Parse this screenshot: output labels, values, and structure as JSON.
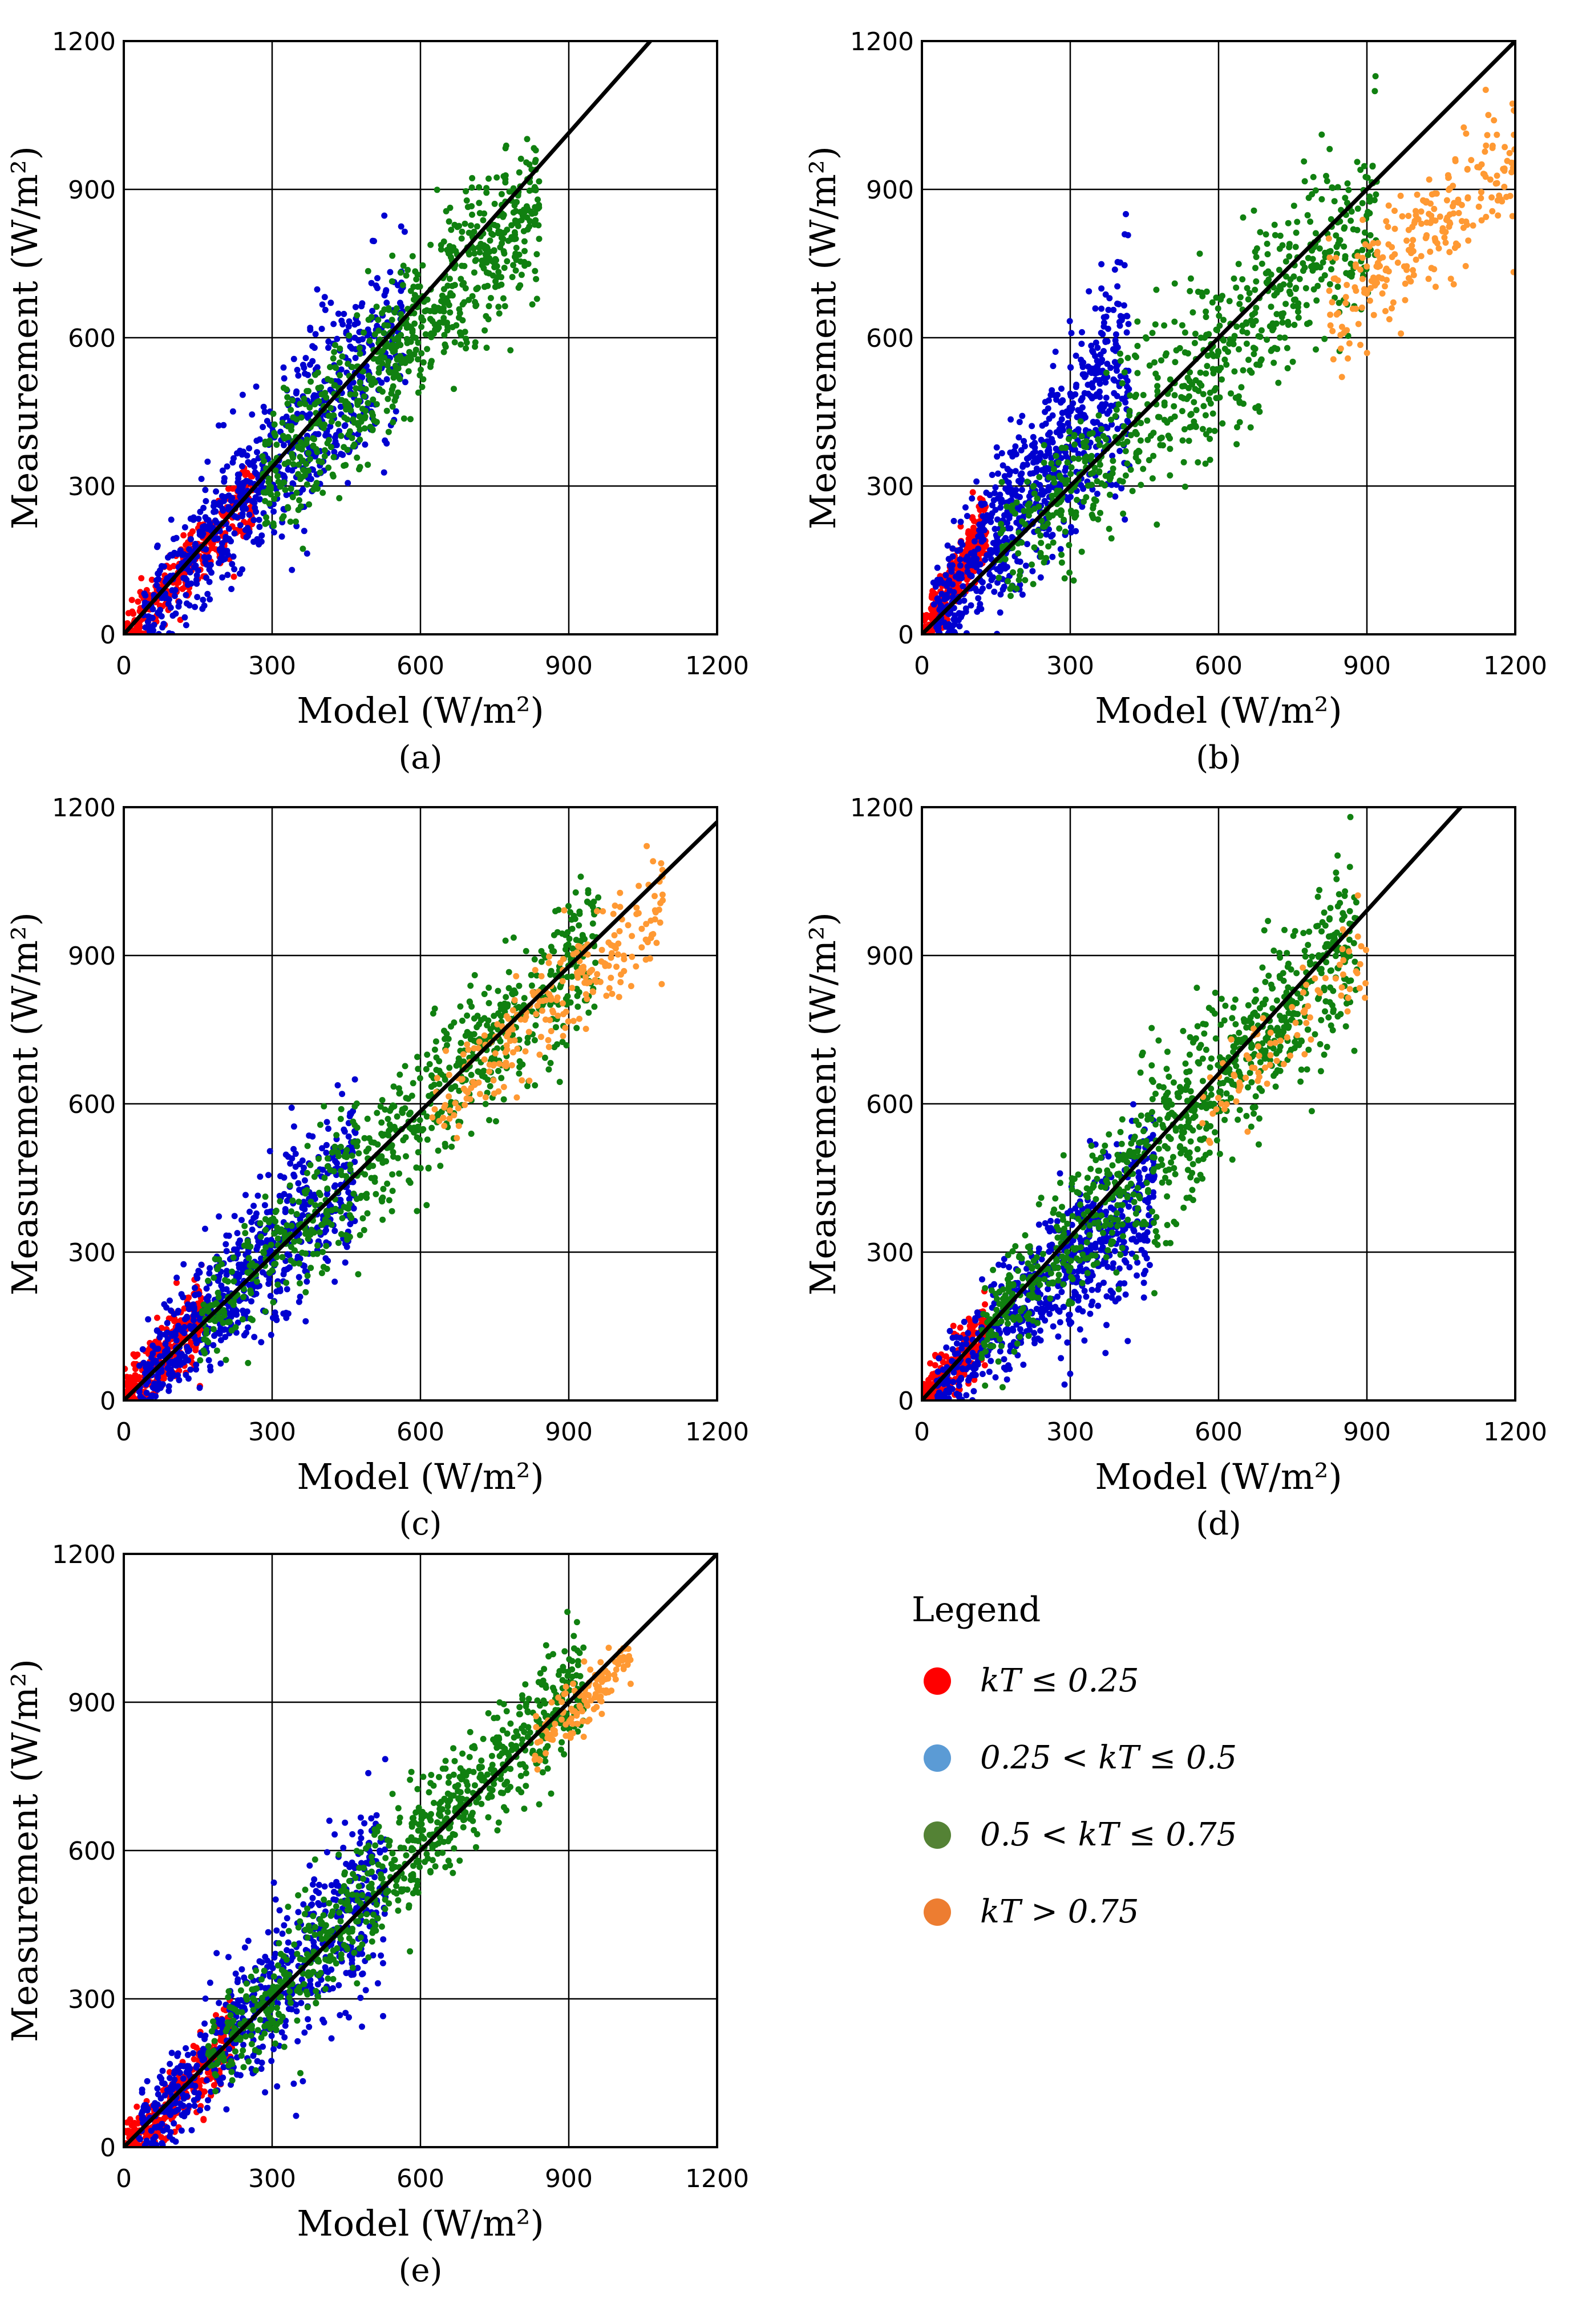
{
  "figure": {
    "panel_labels": [
      "(a)",
      "(b)",
      "(c)",
      "(d)",
      "(e)"
    ],
    "xlabel": "Model (W/m²)",
    "ylabel": "Measurement (W/m²)"
  },
  "legend": {
    "title": "Legend",
    "items": [
      {
        "label": "kT ≤ 0.25",
        "color": "#ff0000"
      },
      {
        "label": "0.25 < kT ≤ 0.5",
        "color": "#5b9bd5"
      },
      {
        "label": "0.5 < kT ≤ 0.75",
        "color": "#548235"
      },
      {
        "label": "kT > 0.75",
        "color": "#ed7d31"
      }
    ]
  },
  "colors": {
    "kT_le_0_25": "#ff0000",
    "kT_0_25_0_5": "#0000d0",
    "kT_0_5_0_75": "#108010",
    "kT_gt_0_75": "#ff9933",
    "identity_line": "#000000",
    "grid": "#000000"
  },
  "chart_data": [
    {
      "panel": "(a)",
      "type": "scatter",
      "xlabel": "Model (W/m²)",
      "ylabel": "Measurement (W/m²)",
      "xlim": [
        0,
        1200
      ],
      "ylim": [
        0,
        1200
      ],
      "xticks": [
        0,
        300,
        600,
        900,
        1200
      ],
      "yticks": [
        0,
        300,
        600,
        900,
        1200
      ],
      "grid": true,
      "reference_line": {
        "x": [
          0,
          1065
        ],
        "y": [
          0,
          1200
        ]
      },
      "series": [
        {
          "name": "kT ≤ 0.25",
          "cluster": {
            "x_range": [
              0,
              260
            ],
            "slope": 1.1,
            "spread": 50,
            "count": 300
          }
        },
        {
          "name": "0.25 < kT ≤ 0.5",
          "cluster": {
            "x_range": [
              40,
              570
            ],
            "slope": 1.12,
            "spread": 95,
            "count": 700
          }
        },
        {
          "name": "0.5 < kT ≤ 0.75",
          "cluster": {
            "x_range": [
              280,
              840
            ],
            "slope": 1.05,
            "spread": 80,
            "count": 750
          }
        }
      ]
    },
    {
      "panel": "(b)",
      "type": "scatter",
      "xlabel": "Model (W/m²)",
      "ylabel": "Measurement (W/m²)",
      "xlim": [
        0,
        1200
      ],
      "ylim": [
        0,
        1200
      ],
      "xticks": [
        0,
        300,
        600,
        900,
        1200
      ],
      "yticks": [
        0,
        300,
        600,
        900,
        1200
      ],
      "grid": true,
      "reference_line": {
        "x": [
          0,
          1200
        ],
        "y": [
          0,
          1200
        ]
      },
      "series": [
        {
          "name": "kT ≤ 0.25",
          "cluster": {
            "x_range": [
              0,
              130
            ],
            "slope": 1.7,
            "spread": 60,
            "count": 300
          }
        },
        {
          "name": "0.25 < kT ≤ 0.5",
          "cluster": {
            "x_range": [
              20,
              420
            ],
            "slope": 1.35,
            "spread": 110,
            "count": 750
          }
        },
        {
          "name": "0.5 < kT ≤ 0.75",
          "cluster": {
            "x_range": [
              150,
              920
            ],
            "slope": 0.95,
            "spread": 90,
            "count": 700
          }
        },
        {
          "name": "kT > 0.75",
          "cluster": {
            "x_range": [
              820,
              1200
            ],
            "slope": 0.8,
            "spread": 60,
            "count": 250
          }
        }
      ]
    },
    {
      "panel": "(c)",
      "type": "scatter",
      "xlabel": "Model (W/m²)",
      "ylabel": "Measurement (W/m²)",
      "xlim": [
        0,
        1200
      ],
      "ylim": [
        0,
        1200
      ],
      "xticks": [
        0,
        300,
        600,
        900,
        1200
      ],
      "yticks": [
        0,
        300,
        600,
        900,
        1200
      ],
      "grid": true,
      "reference_line": {
        "x": [
          0,
          1200
        ],
        "y": [
          0,
          1170
        ]
      },
      "series": [
        {
          "name": "kT ≤ 0.25",
          "cluster": {
            "x_range": [
              0,
              160
            ],
            "slope": 1.1,
            "spread": 70,
            "count": 300
          }
        },
        {
          "name": "0.25 < kT ≤ 0.5",
          "cluster": {
            "x_range": [
              30,
              470
            ],
            "slope": 1.02,
            "spread": 90,
            "count": 650
          }
        },
        {
          "name": "0.5 < kT ≤ 0.75",
          "cluster": {
            "x_range": [
              150,
              960
            ],
            "slope": 0.97,
            "spread": 75,
            "count": 750
          }
        },
        {
          "name": "kT > 0.75",
          "cluster": {
            "x_range": [
              620,
              1090
            ],
            "slope": 0.92,
            "spread": 55,
            "count": 250
          }
        }
      ]
    },
    {
      "panel": "(d)",
      "type": "scatter",
      "xlabel": "Model (W/m²)",
      "ylabel": "Measurement (W/m²)",
      "xlim": [
        0,
        1200
      ],
      "ylim": [
        0,
        1200
      ],
      "xticks": [
        0,
        300,
        600,
        900,
        1200
      ],
      "yticks": [
        0,
        300,
        600,
        900,
        1200
      ],
      "grid": true,
      "reference_line": {
        "x": [
          0,
          1090
        ],
        "y": [
          0,
          1200
        ]
      },
      "series": [
        {
          "name": "kT ≤ 0.25",
          "cluster": {
            "x_range": [
              0,
              130
            ],
            "slope": 1.1,
            "spread": 55,
            "count": 250
          }
        },
        {
          "name": "0.25 < kT ≤ 0.5",
          "cluster": {
            "x_range": [
              30,
              470
            ],
            "slope": 0.92,
            "spread": 90,
            "count": 650
          }
        },
        {
          "name": "0.5 < kT ≤ 0.75",
          "cluster": {
            "x_range": [
              120,
              880
            ],
            "slope": 1.07,
            "spread": 85,
            "count": 900
          }
        },
        {
          "name": "kT > 0.75",
          "cluster": {
            "x_range": [
              560,
              900
            ],
            "slope": 1.02,
            "spread": 45,
            "count": 90
          }
        }
      ]
    },
    {
      "panel": "(e)",
      "type": "scatter",
      "xlabel": "Model (W/m²)",
      "ylabel": "Measurement (W/m²)",
      "xlim": [
        0,
        1200
      ],
      "ylim": [
        0,
        1200
      ],
      "xticks": [
        0,
        300,
        600,
        900,
        1200
      ],
      "yticks": [
        0,
        300,
        600,
        900,
        1200
      ],
      "grid": true,
      "reference_line": {
        "x": [
          0,
          1200
        ],
        "y": [
          0,
          1200
        ]
      },
      "series": [
        {
          "name": "kT ≤ 0.25",
          "cluster": {
            "x_range": [
              0,
              220
            ],
            "slope": 0.95,
            "spread": 55,
            "count": 300
          }
        },
        {
          "name": "0.25 < kT ≤ 0.5",
          "cluster": {
            "x_range": [
              30,
              530
            ],
            "slope": 1.02,
            "spread": 95,
            "count": 650
          }
        },
        {
          "name": "0.5 < kT ≤ 0.75",
          "cluster": {
            "x_range": [
              170,
              930
            ],
            "slope": 1.02,
            "spread": 60,
            "count": 800
          }
        },
        {
          "name": "kT > 0.75",
          "cluster": {
            "x_range": [
              830,
              1030
            ],
            "slope": 0.97,
            "spread": 30,
            "count": 130
          }
        }
      ]
    }
  ]
}
